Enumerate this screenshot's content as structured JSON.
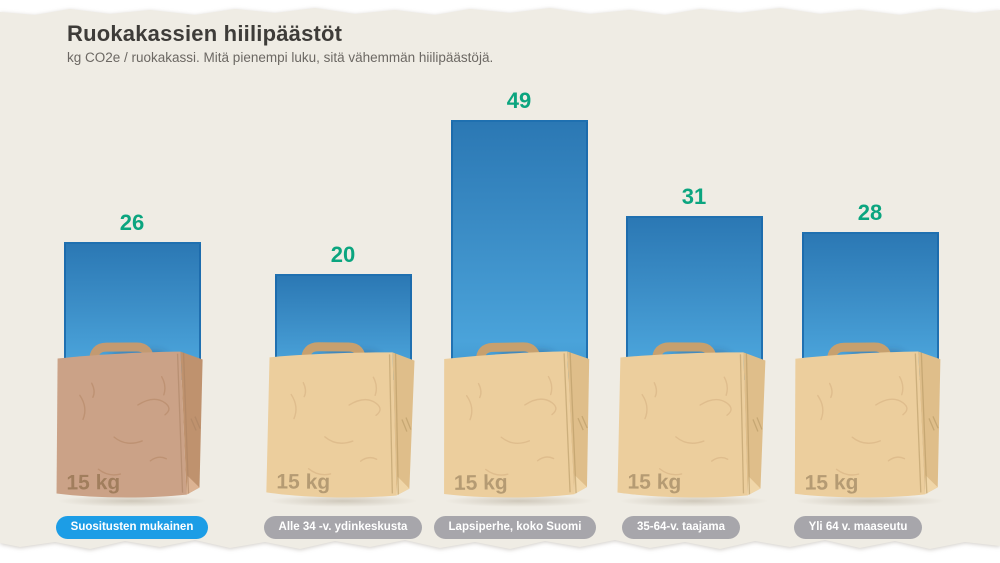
{
  "page": {
    "title": "Ruokakassien hiilipäästöt",
    "subtitle": "kg CO2e / ruokakassi. Mitä pienempi luku, sitä vähemmän hiilipäästöjä."
  },
  "chart_data": {
    "type": "bar",
    "title": "Ruokakassien hiilipäästöt",
    "subtitle": "kg CO2e / ruokakassi. Mitä pienempi luku, sitä vähemmän hiilipäästöjä.",
    "unit": "kg CO2e / ruokakassi",
    "bag_weight_label": "15 kg",
    "categories": [
      "Suositusten mukainen",
      "Alle 34 -v. ydinkeskusta",
      "Lapsiperhe, koko Suomi",
      "35-64-v. taajama",
      "Yli 64 v. maaseutu"
    ],
    "values": [
      26,
      20,
      49,
      31,
      28
    ],
    "items": [
      {
        "label": "Suositusten mukainen",
        "value": 26,
        "highlighted": true
      },
      {
        "label": "Alle 34 -v. ydinkeskusta",
        "value": 20,
        "highlighted": false
      },
      {
        "label": "Lapsiperhe, koko Suomi",
        "value": 49,
        "highlighted": false
      },
      {
        "label": "35-64-v. taajama",
        "value": 31,
        "highlighted": false
      },
      {
        "label": "Yli 64 v. maaseutu",
        "value": 28,
        "highlighted": false
      }
    ],
    "legend_position": "none",
    "grid": false,
    "axes_visible": false,
    "colors": {
      "background": "#EFECE4",
      "value_text": "#0BA57F",
      "bar_gradient_top": "#2B78B4",
      "bar_gradient_bottom": "#4AA3DA",
      "bar_border": "#1E6CAB",
      "pill_highlight": "#1C9DE6",
      "pill_default": "#A7A6AB",
      "pill_text": "#FFFFFF",
      "bag_front": "#ECCE9D",
      "bag_front_first": "#CBA287",
      "bag_handle": "#C7A06E",
      "bag_weight_text": "#B59B73",
      "title_text": "#3E3C39",
      "subtitle_text": "#6C6863"
    }
  }
}
